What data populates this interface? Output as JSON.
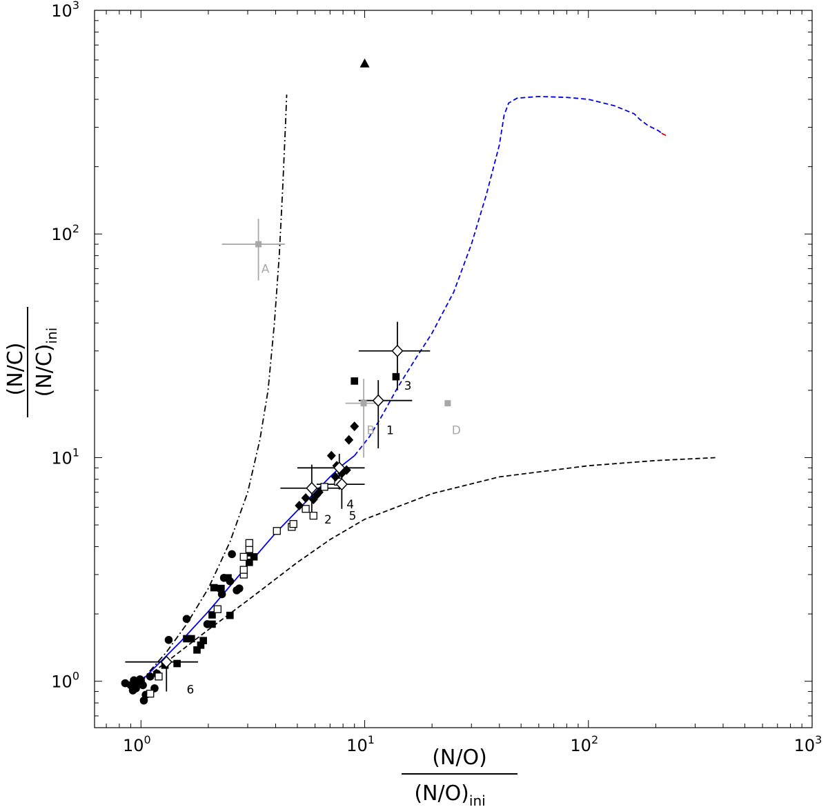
{
  "chart_data": {
    "type": "scatter",
    "xscale": "log",
    "yscale": "log",
    "xlim": [
      0.62,
      1000
    ],
    "ylim": [
      0.62,
      1000
    ],
    "grid": false,
    "xticks": [
      {
        "base": "10",
        "exp": "0",
        "value": 1
      },
      {
        "base": "10",
        "exp": "1",
        "value": 10
      },
      {
        "base": "10",
        "exp": "2",
        "value": 100
      },
      {
        "base": "10",
        "exp": "3",
        "value": 1000
      }
    ],
    "yticks": [
      {
        "base": "10",
        "exp": "0",
        "value": 1
      },
      {
        "base": "10",
        "exp": "1",
        "value": 10
      },
      {
        "base": "10",
        "exp": "2",
        "value": 100
      },
      {
        "base": "10",
        "exp": "3",
        "value": 1000
      }
    ],
    "xlabel": {
      "numerator": "(N/O)",
      "denominator_main": "(N/O)",
      "denominator_sub": "ini"
    },
    "ylabel": {
      "numerator": "(N/C)",
      "denominator_main": "(N/C)",
      "denominator_sub": "ini"
    },
    "series": [
      {
        "marker": "circle-filled",
        "color": "#000000",
        "points": [
          [
            0.85,
            0.98
          ],
          [
            0.9,
            0.96
          ],
          [
            0.93,
            1.01
          ],
          [
            0.95,
            0.93
          ],
          [
            0.97,
            0.98
          ],
          [
            1.0,
            1.0
          ],
          [
            0.92,
            0.91
          ],
          [
            1.02,
            0.96
          ],
          [
            0.99,
            1.02
          ],
          [
            1.05,
            0.87
          ],
          [
            1.03,
            0.82
          ],
          [
            1.1,
            1.05
          ],
          [
            1.15,
            0.93
          ],
          [
            1.18,
            1.08
          ],
          [
            1.33,
            1.53
          ],
          [
            1.6,
            1.9
          ],
          [
            1.98,
            1.8
          ],
          [
            2.3,
            2.45
          ],
          [
            2.35,
            2.9
          ],
          [
            2.5,
            2.8
          ],
          [
            2.55,
            3.7
          ],
          [
            2.68,
            2.55
          ],
          [
            2.75,
            2.6
          ]
        ]
      },
      {
        "marker": "square-filled",
        "color": "#000000",
        "points": [
          [
            1.28,
            1.18
          ],
          [
            1.45,
            1.2
          ],
          [
            1.6,
            1.55
          ],
          [
            1.68,
            1.55
          ],
          [
            1.78,
            1.38
          ],
          [
            1.85,
            1.45
          ],
          [
            1.9,
            1.52
          ],
          [
            2.08,
            1.8
          ],
          [
            2.08,
            1.98
          ],
          [
            2.12,
            2.62
          ],
          [
            2.28,
            2.6
          ],
          [
            2.5,
            1.97
          ],
          [
            2.45,
            2.9
          ],
          [
            3.05,
            3.4
          ],
          [
            3.2,
            3.6
          ],
          [
            3.05,
            3.75
          ],
          [
            9.0,
            22.0
          ],
          [
            13.8,
            23.0
          ]
        ]
      },
      {
        "marker": "square-open",
        "color": "#000000",
        "points": [
          [
            1.1,
            0.88
          ],
          [
            1.2,
            1.05
          ],
          [
            2.2,
            2.1
          ],
          [
            2.88,
            3.0
          ],
          [
            2.88,
            3.15
          ],
          [
            2.88,
            3.6
          ],
          [
            3.05,
            3.9
          ],
          [
            3.05,
            4.15
          ],
          [
            4.05,
            4.7
          ],
          [
            4.72,
            4.9
          ],
          [
            4.8,
            5.05
          ],
          [
            5.45,
            5.9
          ],
          [
            5.9,
            5.5
          ],
          [
            6.6,
            7.4
          ],
          [
            7.6,
            7.8
          ]
        ]
      },
      {
        "marker": "diamond-filled",
        "color": "#000000",
        "points": [
          [
            5.1,
            6.1
          ],
          [
            5.45,
            6.6
          ],
          [
            5.9,
            6.5
          ],
          [
            6.1,
            6.8
          ],
          [
            6.25,
            7.0
          ],
          [
            7.1,
            10.2
          ],
          [
            7.4,
            8.2
          ],
          [
            7.9,
            8.5
          ],
          [
            8.3,
            8.8
          ],
          [
            8.5,
            12.0
          ],
          [
            9.0,
            13.8
          ],
          [
            7.5,
            9.2
          ]
        ]
      },
      {
        "marker": "diamond-open",
        "color": "#000000",
        "points": [
          [
            1.3,
            1.22
          ],
          [
            5.8,
            7.3
          ],
          [
            7.7,
            9.0
          ],
          [
            7.9,
            7.6
          ],
          [
            11.5,
            18.0
          ],
          [
            14.0,
            30.0
          ]
        ]
      },
      {
        "marker": "triangle-filled",
        "color": "#000000",
        "points": [
          [
            10.0,
            580.0
          ]
        ]
      },
      {
        "marker": "square-gray",
        "color": "#a8a8a8",
        "points": [
          [
            3.35,
            90.0
          ],
          [
            9.9,
            17.5
          ],
          [
            23.5,
            17.5
          ]
        ]
      }
    ],
    "errorbars": [
      {
        "x": 1.3,
        "y": 1.22,
        "xerr": [
          0.85,
          1.8
        ],
        "yerr": [
          0.9,
          1.3
        ],
        "color": "#000000"
      },
      {
        "x": 5.8,
        "y": 7.3,
        "xerr": [
          4.2,
          7.9
        ],
        "yerr": [
          5.5,
          9.3
        ],
        "color": "#000000"
      },
      {
        "x": 7.7,
        "y": 9.0,
        "xerr": [
          5.0,
          10.0
        ],
        "yerr": [
          7.2,
          10.4
        ],
        "color": "#000000"
      },
      {
        "x": 7.9,
        "y": 7.6,
        "xerr": [
          6.1,
          10.0
        ],
        "yerr": [
          5.9,
          9.0
        ],
        "color": "#000000"
      },
      {
        "x": 11.5,
        "y": 18.0,
        "xerr": [
          9.4,
          16.3
        ],
        "yerr": [
          11.0,
          22.2
        ],
        "color": "#000000"
      },
      {
        "x": 14.0,
        "y": 30.0,
        "xerr": [
          9.4,
          19.6
        ],
        "yerr": [
          20.0,
          40.5
        ],
        "color": "#000000"
      },
      {
        "x": 3.35,
        "y": 90.0,
        "xerr": [
          2.3,
          4.4
        ],
        "yerr": [
          62.0,
          117.0
        ],
        "color": "#a8a8a8"
      },
      {
        "x": 9.9,
        "y": 17.5,
        "xerr": [
          8.2,
          11.6
        ],
        "yerr": [
          10.0,
          22.5
        ],
        "color": "#a8a8a8"
      }
    ],
    "curves": [
      {
        "style": "dashdot",
        "color": "#000000",
        "points": [
          [
            1.0,
            1.0
          ],
          [
            1.3,
            1.35
          ],
          [
            1.6,
            1.8
          ],
          [
            2.0,
            2.6
          ],
          [
            2.5,
            4.2
          ],
          [
            3.0,
            7.0
          ],
          [
            3.4,
            12.0
          ],
          [
            3.7,
            20.0
          ],
          [
            3.95,
            40.0
          ],
          [
            4.15,
            80.0
          ],
          [
            4.3,
            160.0
          ],
          [
            4.42,
            300.0
          ],
          [
            4.48,
            420.0
          ]
        ]
      },
      {
        "style": "dashed",
        "color": "#000000",
        "points": [
          [
            1.0,
            1.0
          ],
          [
            1.3,
            1.22
          ],
          [
            1.7,
            1.5
          ],
          [
            2.0,
            1.7
          ],
          [
            3.0,
            2.3
          ],
          [
            5.0,
            3.4
          ],
          [
            7.0,
            4.3
          ],
          [
            10.0,
            5.3
          ],
          [
            20.0,
            6.9
          ],
          [
            40.0,
            8.2
          ],
          [
            100.0,
            9.2
          ],
          [
            200.0,
            9.7
          ],
          [
            370.0,
            10.0
          ]
        ]
      },
      {
        "style": "solid",
        "color": "#0000e6",
        "points": [
          [
            1.0,
            1.0
          ],
          [
            1.5,
            1.5
          ],
          [
            2.0,
            2.05
          ],
          [
            3.0,
            3.3
          ],
          [
            4.0,
            4.6
          ],
          [
            5.0,
            5.8
          ],
          [
            6.0,
            7.0
          ],
          [
            7.0,
            8.2
          ],
          [
            8.0,
            9.3
          ],
          [
            9.0,
            10.2
          ]
        ]
      },
      {
        "style": "dashed",
        "color": "#0000e6",
        "points": [
          [
            9.0,
            10.2
          ],
          [
            10.5,
            12.4
          ],
          [
            12.0,
            15.5
          ],
          [
            14.0,
            20.5
          ],
          [
            17.0,
            28.0
          ],
          [
            20.0,
            36.0
          ],
          [
            25.0,
            55.0
          ],
          [
            30.0,
            90.0
          ],
          [
            35.0,
            150.0
          ],
          [
            40.0,
            250.0
          ],
          [
            42.0,
            340.0
          ],
          [
            44.0,
            385.0
          ],
          [
            48.0,
            405.0
          ],
          [
            60.0,
            412.0
          ],
          [
            80.0,
            408.0
          ],
          [
            100.0,
            400.0
          ],
          [
            130.0,
            375.0
          ],
          [
            160.0,
            345.0
          ],
          [
            170.0,
            325.0
          ],
          [
            185.0,
            305.0
          ],
          [
            205.0,
            290.0
          ],
          [
            215.0,
            280.0
          ]
        ]
      },
      {
        "style": "solid",
        "color": "#e60000",
        "points": [
          [
            212.0,
            282.0
          ],
          [
            222.0,
            276.0
          ]
        ]
      }
    ],
    "annotations": [
      {
        "text": "A",
        "x": 3.45,
        "y": 70.0,
        "color": "#a8a8a8"
      },
      {
        "text": "B",
        "x": 10.2,
        "y": 13.3,
        "color": "#a8a8a8"
      },
      {
        "text": "D",
        "x": 24.5,
        "y": 13.3,
        "color": "#a8a8a8"
      },
      {
        "text": "1",
        "x": 12.5,
        "y": 13.3,
        "color": "#000000"
      },
      {
        "text": "2",
        "x": 6.6,
        "y": 5.3,
        "color": "#000000"
      },
      {
        "text": "3",
        "x": 15.0,
        "y": 21.0,
        "color": "#000000"
      },
      {
        "text": "4",
        "x": 8.3,
        "y": 6.2,
        "color": "#000000"
      },
      {
        "text": "5",
        "x": 8.5,
        "y": 5.5,
        "color": "#000000"
      },
      {
        "text": "6",
        "x": 1.6,
        "y": 0.92,
        "color": "#000000"
      }
    ]
  }
}
